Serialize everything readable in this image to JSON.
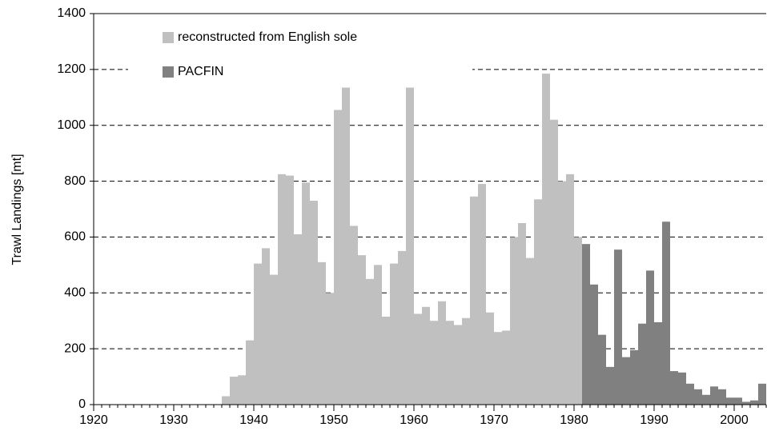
{
  "chart_data": {
    "type": "bar",
    "y_label": "Trawl Landings [mt]",
    "xlim": [
      1920,
      2004
    ],
    "xticks": [
      1920,
      1930,
      1940,
      1950,
      1960,
      1970,
      1980,
      1990,
      2000
    ],
    "ylim": [
      0,
      1400
    ],
    "yticks": [
      0,
      200,
      400,
      600,
      800,
      1000,
      1200,
      1400
    ],
    "grid": true,
    "legend": "upper left",
    "series": [
      {
        "name": "reconstructed from English sole",
        "color": "#c0c0c0",
        "x": [
          1936,
          1937,
          1938,
          1939,
          1940,
          1941,
          1942,
          1943,
          1944,
          1945,
          1946,
          1947,
          1948,
          1949,
          1950,
          1951,
          1952,
          1953,
          1954,
          1955,
          1956,
          1957,
          1958,
          1959,
          1960,
          1961,
          1962,
          1963,
          1964,
          1965,
          1966,
          1967,
          1968,
          1969,
          1970,
          1971,
          1972,
          1973,
          1974,
          1975,
          1976,
          1977,
          1978,
          1979,
          1980
        ],
        "values": [
          30,
          100,
          105,
          230,
          505,
          560,
          465,
          825,
          820,
          610,
          795,
          730,
          510,
          400,
          1055,
          1135,
          640,
          535,
          450,
          500,
          315,
          505,
          550,
          1135,
          325,
          350,
          300,
          370,
          300,
          285,
          310,
          745,
          790,
          330,
          260,
          265,
          600,
          650,
          525,
          735,
          1185,
          1020,
          800,
          825,
          600
        ]
      },
      {
        "name": "PACFIN",
        "color": "#808080",
        "x": [
          1981,
          1982,
          1983,
          1984,
          1985,
          1986,
          1987,
          1988,
          1989,
          1990,
          1991,
          1992,
          1993,
          1994,
          1995,
          1996,
          1997,
          1998,
          1999,
          2000,
          2001,
          2002,
          2003
        ],
        "values": [
          575,
          430,
          250,
          135,
          555,
          170,
          195,
          290,
          480,
          295,
          655,
          120,
          115,
          75,
          55,
          35,
          65,
          55,
          25,
          25,
          10,
          15,
          75
        ]
      }
    ]
  }
}
